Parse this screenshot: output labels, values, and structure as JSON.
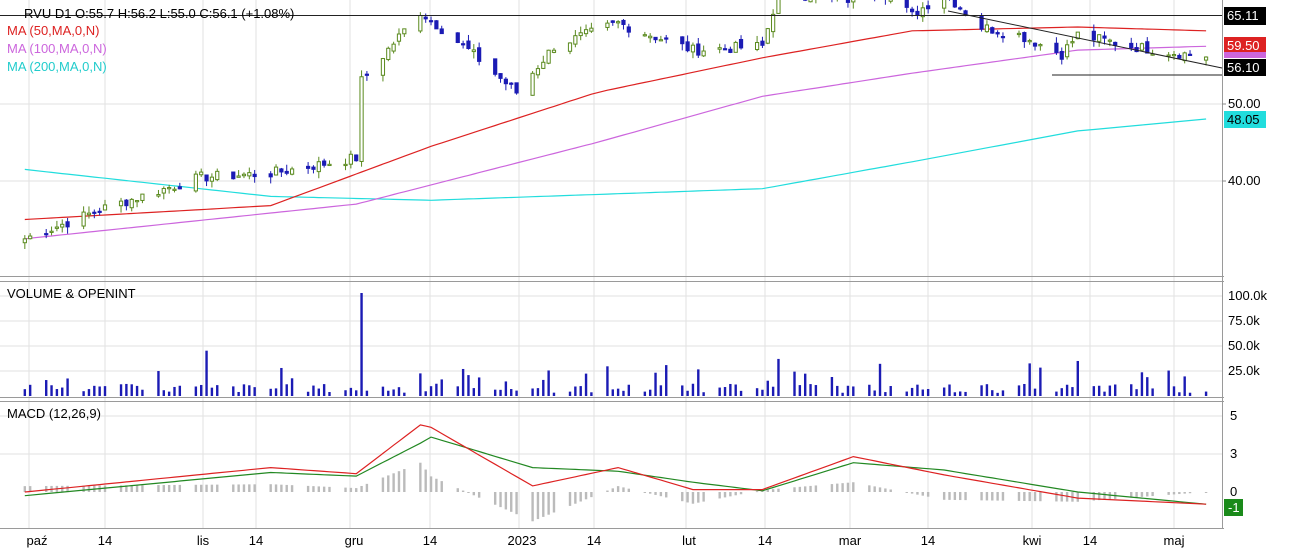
{
  "header": {
    "symbol_line": "RVU  D1  O:55.7  H:56.2  L:55.0  C:56.1  (+1.08%)",
    "ma50_label": "MA (50,MA,0,N)",
    "ma100_label": "MA (100,MA,0,N)",
    "ma200_label": "MA (200,MA,0,N)"
  },
  "colors": {
    "up_candle": "#5a8a1e",
    "down_candle": "#1b1bb4",
    "ma50": "#dd2222",
    "ma100": "#cc66dd",
    "ma200": "#22dddd",
    "volume": "#1b1bb4",
    "macd": "#dd2222",
    "signal": "#228822",
    "histogram": "#bbbbbb"
  },
  "price_panel": {
    "y_ticks": [
      "40.00",
      "50.00"
    ],
    "resistance_label": "65.11",
    "ma50_value_label": "59.50",
    "last_price_label": "56.10",
    "ma200_value_label": "48.05"
  },
  "volume_panel": {
    "title": "VOLUME & OPENINT",
    "y_ticks": [
      "100.0k",
      "75.0k",
      "50.0k",
      "25.0k"
    ]
  },
  "macd_panel": {
    "title": "MACD (12,26,9)",
    "y_ticks": [
      "5",
      "3",
      "0"
    ],
    "value_label": "-1"
  },
  "x_axis": {
    "labels": [
      "paź",
      "14",
      "lis",
      "14",
      "gru",
      "14",
      "2023",
      "14",
      "lut",
      "14",
      "mar",
      "14",
      "kwi",
      "14",
      "maj"
    ]
  },
  "chart_data": {
    "type": "candlestick",
    "ticker": "RVU",
    "timeframe": "D1",
    "last_bar": {
      "open": 55.7,
      "high": 56.2,
      "low": 55.0,
      "close": 56.1,
      "change_pct": 1.08
    },
    "x_axis_months": [
      "paź",
      "lis",
      "gru",
      "2023",
      "lut",
      "mar",
      "kwi",
      "maj"
    ],
    "price_anchors": [
      {
        "date": "2022-09-29",
        "close": 32.5
      },
      {
        "date": "2022-10-14",
        "close": 36.5
      },
      {
        "date": "2022-11-01",
        "close": 40.5
      },
      {
        "date": "2022-11-14",
        "close": 41.0
      },
      {
        "date": "2022-11-30",
        "close": 43.0
      },
      {
        "date": "2022-12-01",
        "close": 53.0
      },
      {
        "date": "2022-12-12",
        "close": 62.0
      },
      {
        "date": "2022-12-21",
        "close": 57.0
      },
      {
        "date": "2022-12-30",
        "close": 51.5
      },
      {
        "date": "2023-01-06",
        "close": 57.5
      },
      {
        "date": "2023-01-18",
        "close": 60.5
      },
      {
        "date": "2023-02-01",
        "close": 57.0
      },
      {
        "date": "2023-02-14",
        "close": 57.5
      },
      {
        "date": "2023-02-17",
        "close": 64.5
      },
      {
        "date": "2023-03-03",
        "close": 63.5
      },
      {
        "date": "2023-03-08",
        "close": 65.0
      },
      {
        "date": "2023-03-14",
        "close": 61.5
      },
      {
        "date": "2023-03-20",
        "close": 64.5
      },
      {
        "date": "2023-03-27",
        "close": 60.0
      },
      {
        "date": "2023-04-03",
        "close": 59.0
      },
      {
        "date": "2023-04-11",
        "close": 56.5
      },
      {
        "date": "2023-04-14",
        "close": 59.0
      },
      {
        "date": "2023-04-24",
        "close": 57.5
      },
      {
        "date": "2023-05-08",
        "close": 56.1
      }
    ],
    "moving_averages": {
      "ma50": [
        {
          "date": "2022-09-29",
          "value": 35.0
        },
        {
          "date": "2022-11-14",
          "value": 36.8
        },
        {
          "date": "2022-12-14",
          "value": 44.5
        },
        {
          "date": "2023-01-14",
          "value": 51.5
        },
        {
          "date": "2023-02-14",
          "value": 56.0
        },
        {
          "date": "2023-03-14",
          "value": 59.5
        },
        {
          "date": "2023-04-14",
          "value": 60.0
        },
        {
          "date": "2023-05-08",
          "value": 59.5
        }
      ],
      "ma100": [
        {
          "date": "2022-09-29",
          "value": 32.5
        },
        {
          "date": "2022-11-30",
          "value": 37.0
        },
        {
          "date": "2023-01-14",
          "value": 45.0
        },
        {
          "date": "2023-02-14",
          "value": 51.0
        },
        {
          "date": "2023-03-14",
          "value": 54.0
        },
        {
          "date": "2023-04-14",
          "value": 57.0
        },
        {
          "date": "2023-05-08",
          "value": 57.5
        }
      ],
      "ma200": [
        {
          "date": "2022-09-29",
          "value": 41.5
        },
        {
          "date": "2022-11-14",
          "value": 38.0
        },
        {
          "date": "2022-12-14",
          "value": 37.5
        },
        {
          "date": "2023-02-14",
          "value": 39.0
        },
        {
          "date": "2023-03-14",
          "value": 42.5
        },
        {
          "date": "2023-04-14",
          "value": 46.5
        },
        {
          "date": "2023-05-08",
          "value": 48.05
        }
      ]
    },
    "resistance_level": 65.11,
    "volume_spikes": [
      {
        "date": "2022-11-02",
        "volume": 44000
      },
      {
        "date": "2022-12-01",
        "volume": 100000
      },
      {
        "date": "2023-02-17",
        "volume": 36000
      },
      {
        "date": "2023-04-14",
        "volume": 34000
      }
    ],
    "volume_ylim": [
      0,
      100000
    ],
    "macd": {
      "params": [
        12,
        26,
        9
      ],
      "anchors": [
        {
          "date": "2022-09-29",
          "macd": 0.0,
          "signal": -0.3
        },
        {
          "date": "2022-11-14",
          "macd": 2.0,
          "signal": 1.6
        },
        {
          "date": "2022-11-30",
          "macd": 1.5,
          "signal": 1.3
        },
        {
          "date": "2022-12-12",
          "macd": 5.5,
          "signal": 4.0
        },
        {
          "date": "2022-12-14",
          "macd": 5.3,
          "signal": 4.5
        },
        {
          "date": "2023-01-02",
          "macd": 0.5,
          "signal": 2.0
        },
        {
          "date": "2023-01-18",
          "macd": 2.0,
          "signal": 1.7
        },
        {
          "date": "2023-02-01",
          "macd": 0.2,
          "signal": 0.8
        },
        {
          "date": "2023-02-14",
          "macd": 0.2,
          "signal": 0.1
        },
        {
          "date": "2023-03-03",
          "macd": 2.9,
          "signal": 2.4
        },
        {
          "date": "2023-03-20",
          "macd": 1.4,
          "signal": 1.8
        },
        {
          "date": "2023-04-14",
          "macd": -0.5,
          "signal": 0.0
        },
        {
          "date": "2023-05-08",
          "macd": -1.0,
          "signal": -1.0
        }
      ],
      "ylim": [
        -1.5,
        6
      ]
    }
  }
}
